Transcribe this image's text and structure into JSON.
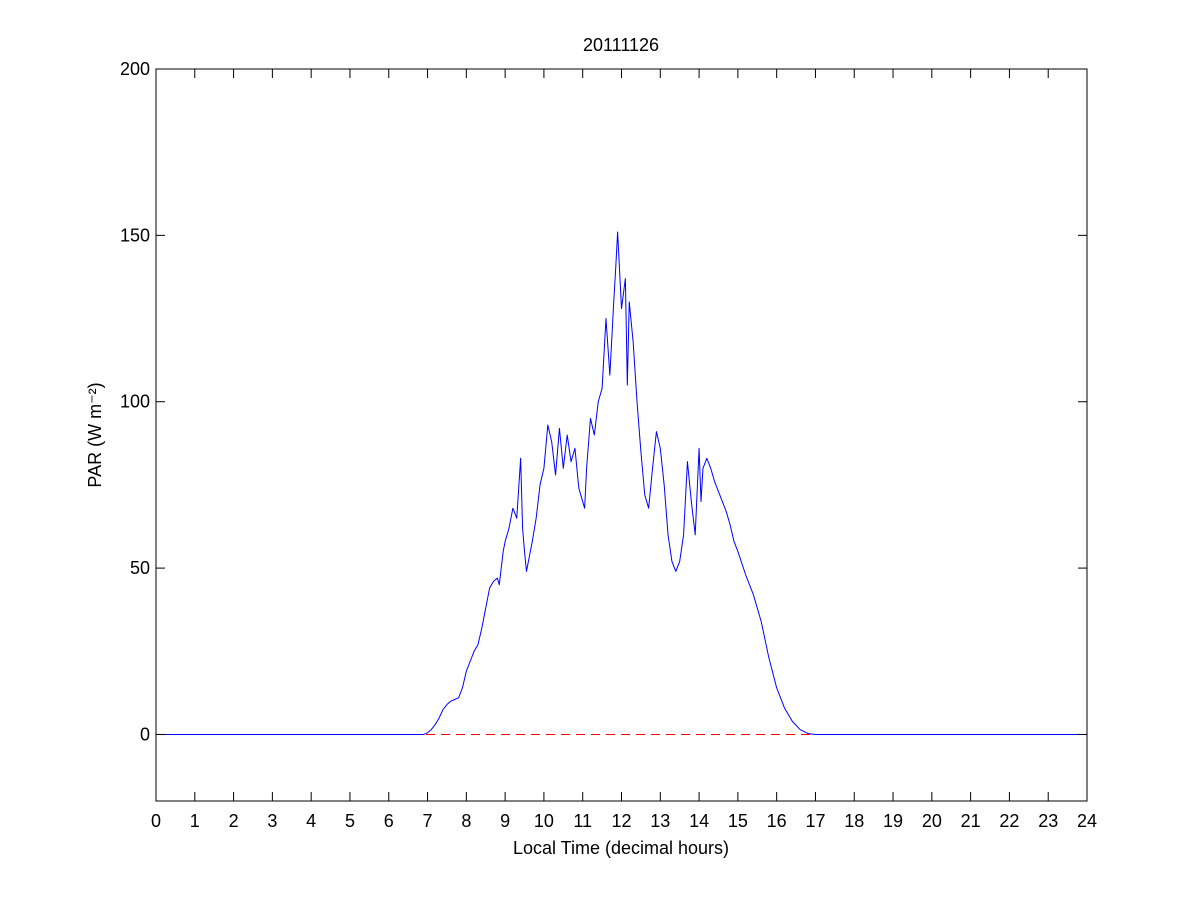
{
  "chart_data": {
    "type": "line",
    "title": "20111126",
    "xlabel": "Local Time (decimal hours)",
    "ylabel": "PAR (W m⁻²)",
    "xlim": [
      0,
      24
    ],
    "ylim": [
      -20,
      200
    ],
    "xticks": [
      0,
      1,
      2,
      3,
      4,
      5,
      6,
      7,
      8,
      9,
      10,
      11,
      12,
      13,
      14,
      15,
      16,
      17,
      18,
      19,
      20,
      21,
      22,
      23,
      24
    ],
    "yticks": [
      0,
      50,
      100,
      150,
      200
    ],
    "grid": false,
    "legend": "none",
    "series": [
      {
        "color": "#0000ff",
        "style": "solid",
        "x": [
          0,
          6.9,
          7.0,
          7.1,
          7.2,
          7.3,
          7.4,
          7.5,
          7.6,
          7.7,
          7.8,
          7.9,
          8.0,
          8.1,
          8.2,
          8.3,
          8.4,
          8.5,
          8.6,
          8.7,
          8.8,
          8.85,
          8.9,
          8.95,
          9.0,
          9.1,
          9.2,
          9.3,
          9.35,
          9.4,
          9.45,
          9.5,
          9.55,
          9.6,
          9.7,
          9.8,
          9.9,
          10.0,
          10.1,
          10.2,
          10.3,
          10.4,
          10.5,
          10.6,
          10.7,
          10.8,
          10.9,
          11.0,
          11.05,
          11.1,
          11.2,
          11.3,
          11.4,
          11.5,
          11.6,
          11.7,
          11.8,
          11.85,
          11.9,
          12.0,
          12.1,
          12.15,
          12.2,
          12.3,
          12.4,
          12.5,
          12.6,
          12.7,
          12.8,
          12.9,
          13.0,
          13.1,
          13.2,
          13.3,
          13.4,
          13.5,
          13.6,
          13.7,
          13.8,
          13.9,
          14.0,
          14.05,
          14.1,
          14.2,
          14.3,
          14.4,
          14.5,
          14.6,
          14.7,
          14.8,
          14.9,
          15.0,
          15.2,
          15.4,
          15.6,
          15.8,
          16.0,
          16.2,
          16.4,
          16.6,
          16.8,
          17.0,
          17.2,
          24
        ],
        "y": [
          0,
          0,
          0.5,
          1.5,
          3,
          5,
          7.5,
          9,
          10,
          10.5,
          11,
          14,
          19,
          22,
          25,
          27,
          32,
          38,
          44,
          46,
          47,
          45,
          50,
          55,
          58,
          62,
          68,
          65,
          74,
          83,
          62,
          55,
          49,
          52,
          58,
          65,
          75,
          80,
          93,
          88,
          78,
          92,
          80,
          90,
          82,
          86,
          74,
          70,
          68,
          80,
          95,
          90,
          100,
          104,
          125,
          108,
          130,
          140,
          151,
          128,
          137,
          105,
          130,
          118,
          100,
          85,
          72,
          68,
          80,
          91,
          86,
          75,
          60,
          52,
          49,
          52,
          60,
          82,
          70,
          60,
          86,
          70,
          80,
          83,
          80,
          76,
          73,
          70,
          67,
          63,
          58,
          55,
          48,
          42,
          34,
          23,
          14,
          8,
          4,
          1.5,
          0.3,
          0,
          0,
          0
        ]
      },
      {
        "color": "#ff0000",
        "style": "dashed",
        "x": [
          0,
          24
        ],
        "y": [
          0,
          0
        ]
      }
    ]
  }
}
